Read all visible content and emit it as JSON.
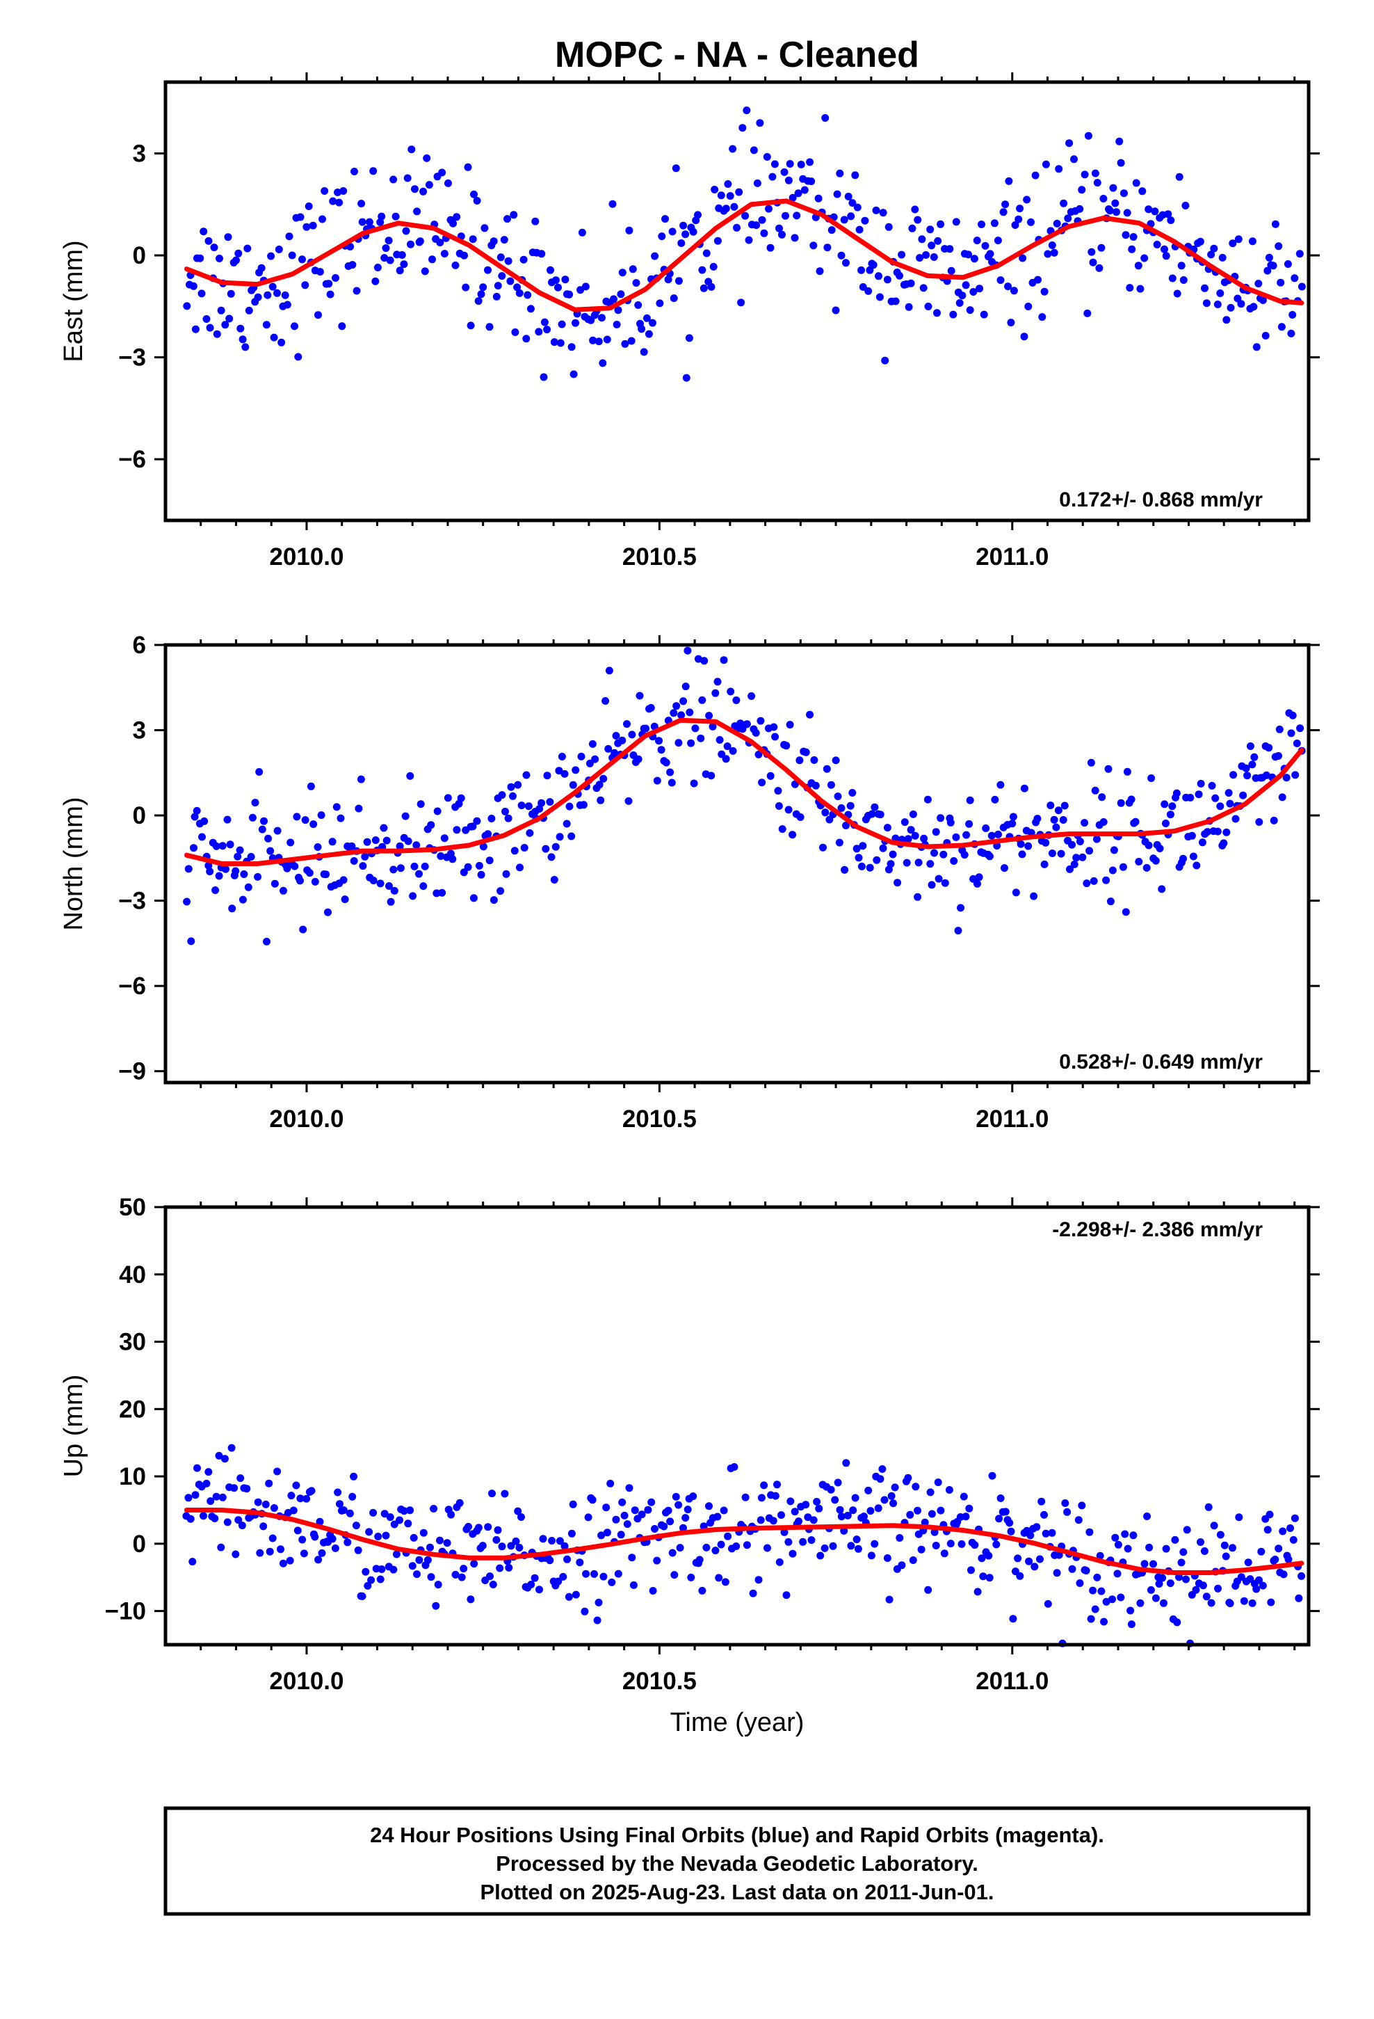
{
  "title": "MOPC  - NA - Cleaned",
  "footer": {
    "lines": [
      "24 Hour Positions Using Final Orbits (blue) and Rapid Orbits (magenta).",
      "Processed by the Nevada Geodetic Laboratory.",
      "Plotted on 2025-Aug-23. Last data on 2011-Jun-01."
    ]
  },
  "colors": {
    "points": "#0000ff",
    "fit": "#ff0000",
    "frame": "#000000"
  },
  "chart_data": [
    {
      "type": "scatter",
      "name": "east",
      "ylabel": "East (mm)",
      "xlabel": "",
      "xlim": [
        2009.8,
        2011.42
      ],
      "ylim": [
        -7.8,
        5.1
      ],
      "x_ticks": [
        2010.0,
        2010.5,
        2011.0
      ],
      "x_tick_labels": [
        "2010.0",
        "2010.5",
        "2011.0"
      ],
      "y_ticks": [
        3,
        0,
        -3,
        -6
      ],
      "y_tick_labels": [
        "3",
        "0",
        "−3",
        "−6"
      ],
      "rate": "0.172+/- 0.868 mm/yr",
      "rate_position": "bottom-right",
      "fit": {
        "x": [
          2009.83,
          2009.88,
          2009.93,
          2009.98,
          2010.03,
          2010.08,
          2010.13,
          2010.18,
          2010.23,
          2010.28,
          2010.33,
          2010.38,
          2010.43,
          2010.48,
          2010.53,
          2010.58,
          2010.63,
          2010.68,
          2010.73,
          2010.78,
          2010.83,
          2010.88,
          2010.93,
          2010.98,
          2011.03,
          2011.08,
          2011.13,
          2011.18,
          2011.23,
          2011.28,
          2011.33,
          2011.38,
          2011.41
        ],
        "y": [
          -0.4,
          -0.8,
          -0.85,
          -0.55,
          0.05,
          0.65,
          0.95,
          0.8,
          0.3,
          -0.4,
          -1.1,
          -1.6,
          -1.55,
          -1.0,
          -0.1,
          0.8,
          1.5,
          1.6,
          1.2,
          0.5,
          -0.2,
          -0.6,
          -0.65,
          -0.3,
          0.3,
          0.85,
          1.1,
          0.95,
          0.4,
          -0.3,
          -0.95,
          -1.35,
          -1.4
        ]
      }
    },
    {
      "type": "scatter",
      "name": "north",
      "ylabel": "North (mm)",
      "xlabel": "",
      "xlim": [
        2009.8,
        2011.42
      ],
      "ylim": [
        -9.4,
        6.0
      ],
      "x_ticks": [
        2010.0,
        2010.5,
        2011.0
      ],
      "x_tick_labels": [
        "2010.0",
        "2010.5",
        "2011.0"
      ],
      "y_ticks": [
        6,
        3,
        0,
        -3,
        -6,
        -9
      ],
      "y_tick_labels": [
        "6",
        "3",
        "0",
        "−3",
        "−6",
        "−9"
      ],
      "rate": "0.528+/- 0.649 mm/yr",
      "rate_position": "bottom-right",
      "fit": {
        "x": [
          2009.83,
          2009.88,
          2009.93,
          2009.98,
          2010.03,
          2010.08,
          2010.13,
          2010.18,
          2010.23,
          2010.28,
          2010.33,
          2010.38,
          2010.43,
          2010.48,
          2010.53,
          2010.58,
          2010.63,
          2010.68,
          2010.73,
          2010.78,
          2010.83,
          2010.88,
          2010.93,
          2010.98,
          2011.03,
          2011.08,
          2011.13,
          2011.18,
          2011.23,
          2011.28,
          2011.33,
          2011.38,
          2011.41
        ],
        "y": [
          -1.4,
          -1.7,
          -1.7,
          -1.55,
          -1.4,
          -1.25,
          -1.25,
          -1.2,
          -1.05,
          -0.7,
          -0.1,
          0.8,
          1.8,
          2.8,
          3.35,
          3.3,
          2.6,
          1.6,
          0.5,
          -0.4,
          -0.95,
          -1.1,
          -1.05,
          -0.9,
          -0.75,
          -0.65,
          -0.65,
          -0.65,
          -0.55,
          -0.2,
          0.4,
          1.4,
          2.3
        ]
      }
    },
    {
      "type": "scatter",
      "name": "up",
      "ylabel": "Up (mm)",
      "xlabel": "Time (year)",
      "xlim": [
        2009.8,
        2011.42
      ],
      "ylim": [
        -15,
        50
      ],
      "x_ticks": [
        2010.0,
        2010.5,
        2011.0
      ],
      "x_tick_labels": [
        "2010.0",
        "2010.5",
        "2011.0"
      ],
      "y_ticks": [
        50,
        40,
        30,
        20,
        10,
        0,
        -10
      ],
      "y_tick_labels": [
        "50",
        "40",
        "30",
        "20",
        "10",
        "0",
        "−10"
      ],
      "rate": "-2.298+/- 2.386 mm/yr",
      "rate_position": "top-right",
      "fit": {
        "x": [
          2009.83,
          2009.88,
          2009.93,
          2009.98,
          2010.03,
          2010.08,
          2010.13,
          2010.18,
          2010.23,
          2010.28,
          2010.33,
          2010.38,
          2010.43,
          2010.48,
          2010.53,
          2010.58,
          2010.63,
          2010.68,
          2010.73,
          2010.78,
          2010.83,
          2010.88,
          2010.93,
          2010.98,
          2011.03,
          2011.08,
          2011.13,
          2011.18,
          2011.23,
          2011.28,
          2011.33,
          2011.38,
          2011.41
        ],
        "y": [
          5.0,
          5.0,
          4.6,
          3.6,
          2.2,
          0.6,
          -0.8,
          -1.6,
          -2.1,
          -2.1,
          -1.6,
          -0.9,
          -0.1,
          0.8,
          1.6,
          2.1,
          2.3,
          2.4,
          2.5,
          2.6,
          2.7,
          2.5,
          2.0,
          1.2,
          0.1,
          -1.3,
          -2.7,
          -3.8,
          -4.3,
          -4.3,
          -3.9,
          -3.3,
          -2.9
        ]
      }
    }
  ]
}
